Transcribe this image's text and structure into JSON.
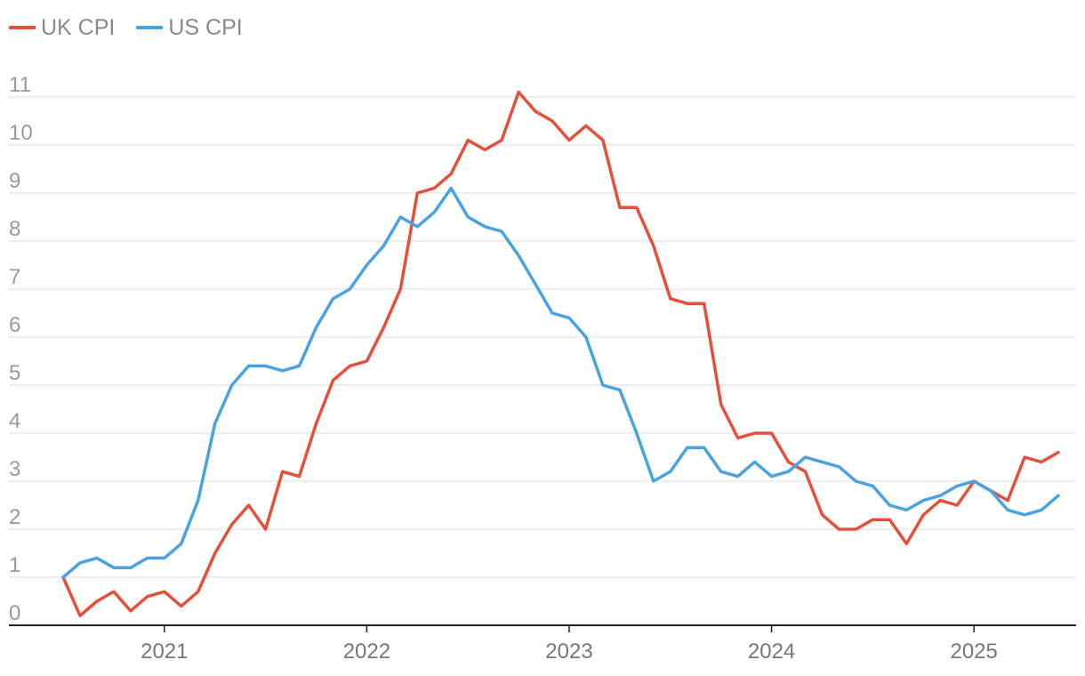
{
  "chart_data": {
    "type": "line",
    "title": "",
    "xlabel": "",
    "ylabel": "",
    "ylim": [
      0,
      11
    ],
    "yticks": [
      "0",
      "1",
      "2",
      "3",
      "4",
      "5",
      "6",
      "7",
      "8",
      "9",
      "10",
      "11"
    ],
    "xticks": [
      "2021",
      "2022",
      "2023",
      "2024",
      "2025"
    ],
    "x_start": "2020-07",
    "grid": true,
    "legend_position": "top-left",
    "series": [
      {
        "name": "UK CPI",
        "color": "#e5503a",
        "values": [
          1.0,
          0.2,
          0.5,
          0.7,
          0.3,
          0.6,
          0.7,
          0.4,
          0.7,
          1.5,
          2.1,
          2.5,
          2.0,
          3.2,
          3.1,
          4.2,
          5.1,
          5.4,
          5.5,
          6.2,
          7.0,
          9.0,
          9.1,
          9.4,
          10.1,
          9.9,
          10.1,
          11.1,
          10.7,
          10.5,
          10.1,
          10.4,
          10.1,
          8.7,
          8.7,
          7.9,
          6.8,
          6.7,
          6.7,
          4.6,
          3.9,
          4.0,
          4.0,
          3.4,
          3.2,
          2.3,
          2.0,
          2.0,
          2.2,
          2.2,
          1.7,
          2.3,
          2.6,
          2.5,
          3.0,
          2.8,
          2.6,
          3.5,
          3.4,
          3.6
        ]
      },
      {
        "name": "US CPI",
        "color": "#4aa3e0",
        "values": [
          1.0,
          1.3,
          1.4,
          1.2,
          1.2,
          1.4,
          1.4,
          1.7,
          2.6,
          4.2,
          5.0,
          5.4,
          5.4,
          5.3,
          5.4,
          6.2,
          6.8,
          7.0,
          7.5,
          7.9,
          8.5,
          8.3,
          8.6,
          9.1,
          8.5,
          8.3,
          8.2,
          7.7,
          7.1,
          6.5,
          6.4,
          6.0,
          5.0,
          4.9,
          4.0,
          3.0,
          3.2,
          3.7,
          3.7,
          3.2,
          3.1,
          3.4,
          3.1,
          3.2,
          3.5,
          3.4,
          3.3,
          3.0,
          2.9,
          2.5,
          2.4,
          2.6,
          2.7,
          2.9,
          3.0,
          2.8,
          2.4,
          2.3,
          2.4,
          2.7
        ]
      }
    ]
  }
}
